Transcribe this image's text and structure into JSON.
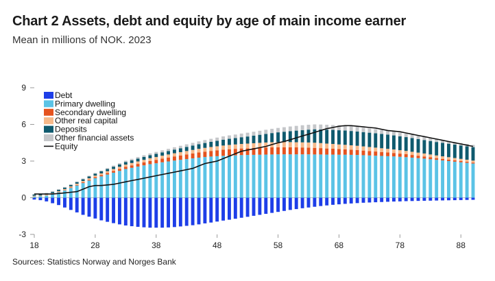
{
  "title": "Chart 2 Assets, debt and equity by age of main income earner",
  "subtitle": "Mean in millions of NOK. 2023",
  "source": "Sources: Statistics Norway and Norges Bank",
  "chart_data": {
    "type": "bar",
    "stacked": true,
    "x_ticks": [
      "18",
      "28",
      "38",
      "48",
      "58",
      "68",
      "78",
      "88"
    ],
    "x": [
      18,
      19,
      20,
      21,
      22,
      23,
      24,
      25,
      26,
      27,
      28,
      29,
      30,
      31,
      32,
      33,
      34,
      35,
      36,
      37,
      38,
      39,
      40,
      41,
      42,
      43,
      44,
      45,
      46,
      47,
      48,
      49,
      50,
      51,
      52,
      53,
      54,
      55,
      56,
      57,
      58,
      59,
      60,
      61,
      62,
      63,
      64,
      65,
      66,
      67,
      68,
      69,
      70,
      71,
      72,
      73,
      74,
      75,
      76,
      77,
      78,
      79,
      80,
      81,
      82,
      83,
      84,
      85,
      86,
      87,
      88,
      89,
      90
    ],
    "ylim": [
      -3,
      9
    ],
    "y_ticks": [
      -3,
      0,
      3,
      6,
      9
    ],
    "legend_position": "top-left",
    "series": [
      {
        "name": "Debt",
        "color": "#1d3ee8",
        "values": [
          -0.15,
          -0.2,
          -0.3,
          -0.45,
          -0.6,
          -0.8,
          -1.0,
          -1.2,
          -1.4,
          -1.55,
          -1.7,
          -1.85,
          -1.97,
          -2.08,
          -2.18,
          -2.27,
          -2.33,
          -2.38,
          -2.42,
          -2.45,
          -2.45,
          -2.45,
          -2.43,
          -2.4,
          -2.35,
          -2.3,
          -2.25,
          -2.18,
          -2.1,
          -2.03,
          -1.95,
          -1.87,
          -1.8,
          -1.72,
          -1.64,
          -1.56,
          -1.48,
          -1.4,
          -1.32,
          -1.24,
          -1.16,
          -1.08,
          -1.0,
          -0.93,
          -0.86,
          -0.8,
          -0.74,
          -0.68,
          -0.63,
          -0.58,
          -0.54,
          -0.5,
          -0.47,
          -0.44,
          -0.41,
          -0.39,
          -0.37,
          -0.35,
          -0.33,
          -0.31,
          -0.3,
          -0.28,
          -0.27,
          -0.26,
          -0.25,
          -0.24,
          -0.23,
          -0.22,
          -0.21,
          -0.2,
          -0.19,
          -0.18,
          -0.17
        ]
      },
      {
        "name": "Primary dwelling",
        "color": "#5bc3e6",
        "values": [
          0.1,
          0.12,
          0.18,
          0.3,
          0.45,
          0.6,
          0.8,
          1.0,
          1.2,
          1.4,
          1.6,
          1.75,
          1.9,
          2.05,
          2.2,
          2.35,
          2.45,
          2.55,
          2.65,
          2.75,
          2.82,
          2.9,
          2.97,
          3.04,
          3.1,
          3.16,
          3.22,
          3.28,
          3.33,
          3.37,
          3.4,
          3.43,
          3.45,
          3.47,
          3.49,
          3.5,
          3.51,
          3.52,
          3.53,
          3.54,
          3.55,
          3.55,
          3.55,
          3.55,
          3.55,
          3.55,
          3.54,
          3.54,
          3.53,
          3.53,
          3.52,
          3.52,
          3.51,
          3.5,
          3.48,
          3.46,
          3.44,
          3.42,
          3.4,
          3.38,
          3.35,
          3.32,
          3.28,
          3.24,
          3.2,
          3.15,
          3.1,
          3.05,
          3.0,
          2.95,
          2.9,
          2.85,
          2.8
        ]
      },
      {
        "name": "Secondary dwelling",
        "color": "#e5531f",
        "values": [
          0.01,
          0.01,
          0.01,
          0.02,
          0.02,
          0.03,
          0.04,
          0.05,
          0.06,
          0.07,
          0.08,
          0.1,
          0.12,
          0.14,
          0.16,
          0.18,
          0.2,
          0.22,
          0.24,
          0.26,
          0.28,
          0.3,
          0.32,
          0.34,
          0.36,
          0.38,
          0.4,
          0.42,
          0.44,
          0.46,
          0.48,
          0.5,
          0.52,
          0.53,
          0.54,
          0.55,
          0.56,
          0.57,
          0.58,
          0.58,
          0.58,
          0.58,
          0.58,
          0.57,
          0.56,
          0.55,
          0.54,
          0.52,
          0.5,
          0.48,
          0.46,
          0.44,
          0.42,
          0.4,
          0.38,
          0.36,
          0.34,
          0.32,
          0.3,
          0.28,
          0.26,
          0.24,
          0.22,
          0.2,
          0.18,
          0.16,
          0.14,
          0.13,
          0.12,
          0.11,
          0.1,
          0.09,
          0.08
        ]
      },
      {
        "name": "Other real capital",
        "color": "#f6b98a",
        "values": [
          0.05,
          0.05,
          0.06,
          0.06,
          0.07,
          0.08,
          0.09,
          0.1,
          0.11,
          0.12,
          0.13,
          0.14,
          0.15,
          0.16,
          0.17,
          0.18,
          0.19,
          0.2,
          0.21,
          0.22,
          0.23,
          0.24,
          0.25,
          0.26,
          0.27,
          0.28,
          0.29,
          0.3,
          0.31,
          0.32,
          0.33,
          0.34,
          0.35,
          0.36,
          0.37,
          0.38,
          0.39,
          0.4,
          0.41,
          0.42,
          0.42,
          0.42,
          0.42,
          0.42,
          0.42,
          0.42,
          0.42,
          0.41,
          0.4,
          0.39,
          0.38,
          0.37,
          0.36,
          0.35,
          0.34,
          0.33,
          0.32,
          0.31,
          0.3,
          0.29,
          0.28,
          0.27,
          0.26,
          0.25,
          0.24,
          0.23,
          0.22,
          0.21,
          0.2,
          0.19,
          0.18,
          0.17,
          0.16
        ]
      },
      {
        "name": "Deposits",
        "color": "#0f5a6e",
        "values": [
          0.1,
          0.1,
          0.1,
          0.1,
          0.11,
          0.12,
          0.12,
          0.13,
          0.14,
          0.15,
          0.16,
          0.17,
          0.18,
          0.19,
          0.2,
          0.21,
          0.22,
          0.23,
          0.24,
          0.25,
          0.26,
          0.27,
          0.28,
          0.3,
          0.32,
          0.34,
          0.36,
          0.38,
          0.4,
          0.42,
          0.45,
          0.48,
          0.5,
          0.52,
          0.55,
          0.58,
          0.62,
          0.66,
          0.7,
          0.75,
          0.8,
          0.85,
          0.9,
          0.95,
          1.0,
          1.05,
          1.1,
          1.12,
          1.14,
          1.15,
          1.16,
          1.17,
          1.17,
          1.17,
          1.17,
          1.17,
          1.17,
          1.17,
          1.16,
          1.15,
          1.14,
          1.13,
          1.12,
          1.11,
          1.1,
          1.1,
          1.1,
          1.1,
          1.1,
          1.1,
          1.1,
          1.1,
          1.1
        ]
      },
      {
        "name": "Other financial assets",
        "color": "#c5c7ca",
        "values": [
          0.05,
          0.05,
          0.05,
          0.05,
          0.05,
          0.05,
          0.05,
          0.05,
          0.06,
          0.06,
          0.06,
          0.07,
          0.08,
          0.09,
          0.1,
          0.11,
          0.12,
          0.13,
          0.14,
          0.15,
          0.16,
          0.17,
          0.18,
          0.19,
          0.2,
          0.21,
          0.22,
          0.23,
          0.24,
          0.25,
          0.26,
          0.27,
          0.28,
          0.29,
          0.3,
          0.31,
          0.32,
          0.33,
          0.34,
          0.35,
          0.36,
          0.37,
          0.38,
          0.39,
          0.4,
          0.4,
          0.4,
          0.4,
          0.4,
          0.4,
          0.4,
          0.4,
          0.4,
          0.38,
          0.36,
          0.35,
          0.34,
          0.33,
          0.32,
          0.31,
          0.3,
          0.29,
          0.28,
          0.27,
          0.26,
          0.25,
          0.24,
          0.23,
          0.22,
          0.21,
          0.2,
          0.19,
          0.18
        ]
      },
      {
        "name": "Equity",
        "type": "line",
        "color": "#111111",
        "values": [
          0.3,
          0.3,
          0.3,
          0.3,
          0.35,
          0.4,
          0.45,
          0.5,
          0.7,
          0.9,
          1.0,
          1.0,
          1.05,
          1.1,
          1.2,
          1.3,
          1.4,
          1.5,
          1.6,
          1.7,
          1.8,
          1.9,
          2.0,
          2.1,
          2.2,
          2.3,
          2.4,
          2.6,
          2.8,
          2.9,
          3.0,
          3.2,
          3.4,
          3.6,
          3.8,
          3.9,
          4.0,
          4.1,
          4.2,
          4.35,
          4.5,
          4.6,
          4.75,
          4.9,
          5.05,
          5.2,
          5.35,
          5.5,
          5.65,
          5.75,
          5.85,
          5.9,
          5.9,
          5.85,
          5.8,
          5.75,
          5.7,
          5.6,
          5.5,
          5.45,
          5.4,
          5.3,
          5.2,
          5.1,
          5.0,
          4.9,
          4.8,
          4.7,
          4.6,
          4.5,
          4.4,
          4.3,
          4.2
        ]
      }
    ]
  }
}
